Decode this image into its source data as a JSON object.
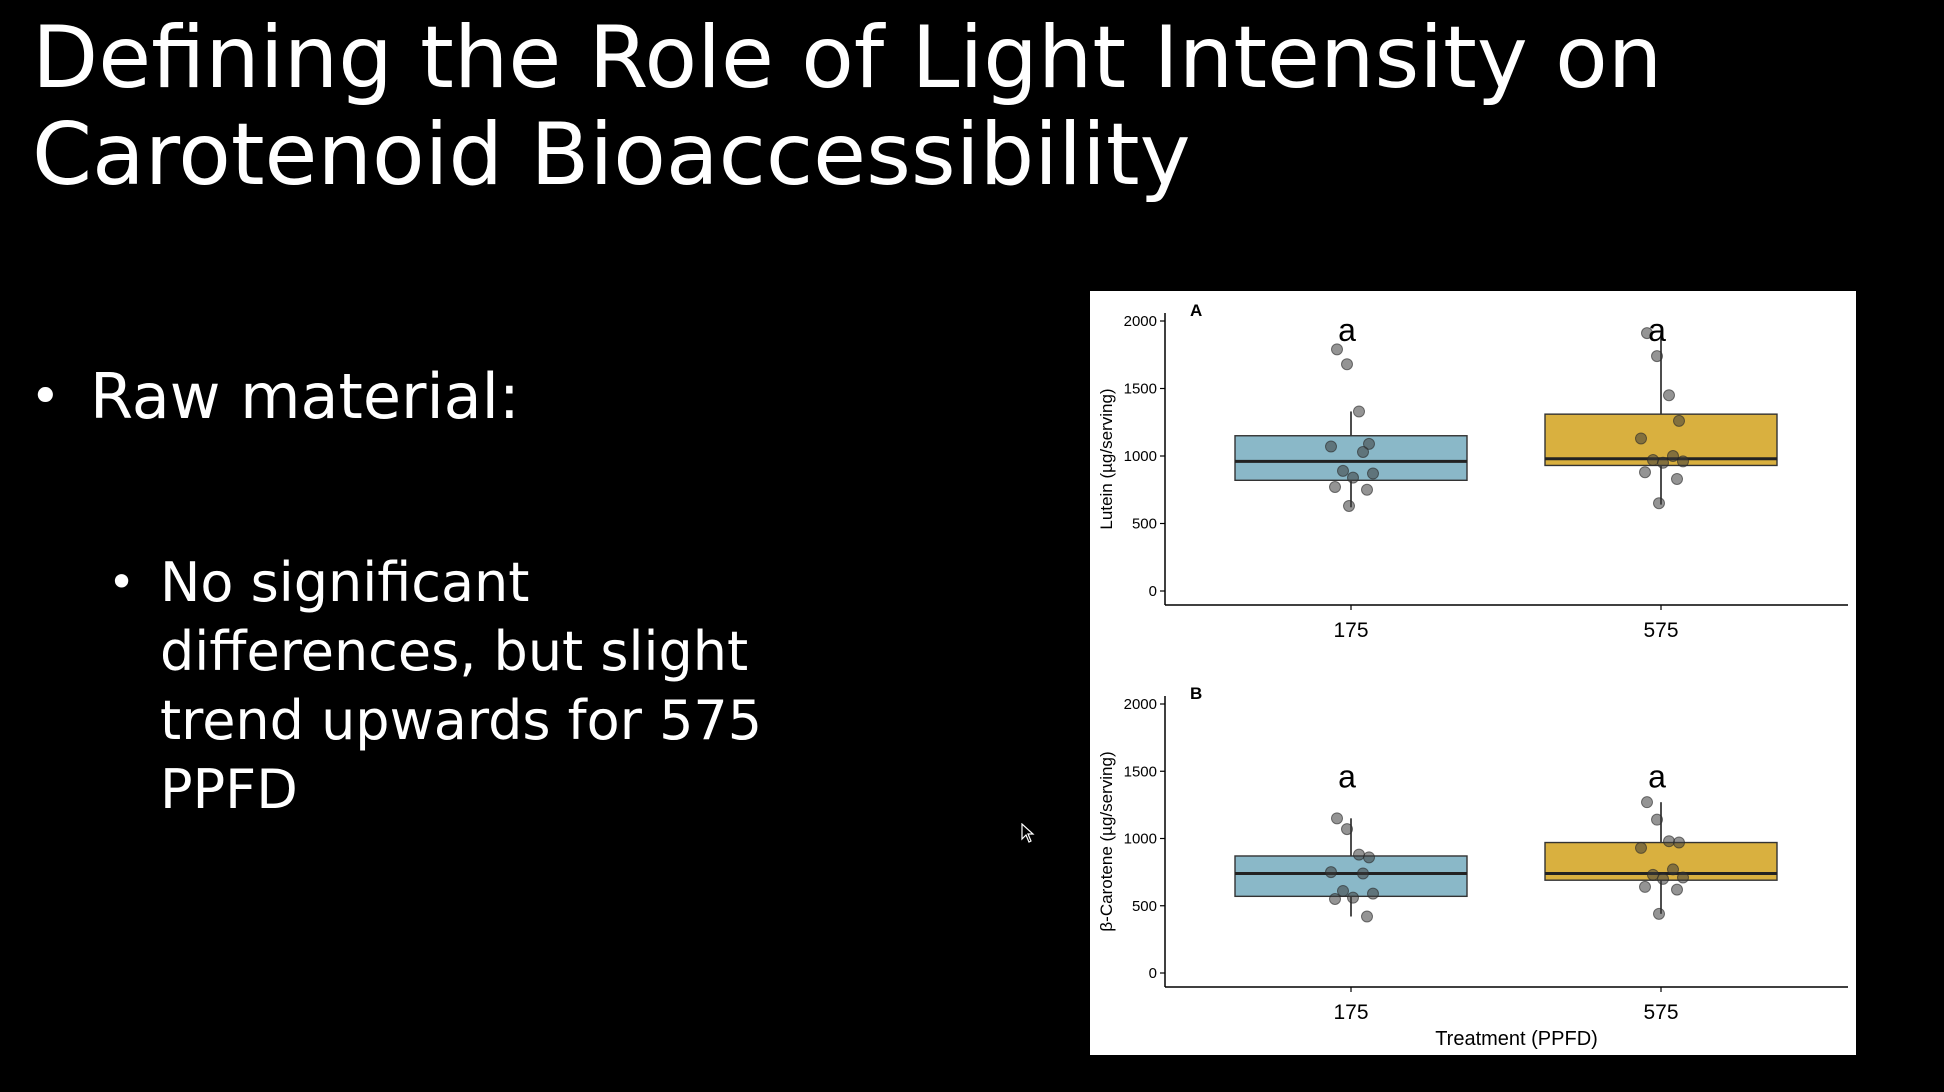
{
  "slide": {
    "title_line1": "Defining the Role of Light Intensity on",
    "title_line2": "Carotenoid Bioaccessibility",
    "bullet1": "Raw material:",
    "bullet2": "No significant differences, but slight trend upwards for 575 PPFD",
    "bullet_glyph": "•"
  },
  "chart_data": [
    {
      "type": "box",
      "panel_label": "A",
      "ylabel": "Lutein (µg/serving)",
      "xlabel": "",
      "categories": [
        "175",
        "575"
      ],
      "ylim": [
        0,
        2000
      ],
      "yticks": [
        0,
        500,
        1000,
        1500,
        2000
      ],
      "grid": false,
      "colors": [
        "#8ab8c8",
        "#d9b03f"
      ],
      "boxes": [
        {
          "category": "175",
          "q1": 820,
          "median": 960,
          "q3": 1150,
          "whisker_low": 620,
          "whisker_high": 1330,
          "letter": "a",
          "points": [
            1790,
            1680,
            1330,
            1090,
            1070,
            1030,
            890,
            870,
            840,
            770,
            750,
            630
          ]
        },
        {
          "category": "575",
          "q1": 930,
          "median": 980,
          "q3": 1310,
          "whisker_low": 640,
          "whisker_high": 1910,
          "letter": "a",
          "points": [
            1910,
            1740,
            1450,
            1260,
            1130,
            1000,
            970,
            960,
            950,
            880,
            830,
            650
          ]
        }
      ]
    },
    {
      "type": "box",
      "panel_label": "B",
      "ylabel": "β-Carotene (µg/serving)",
      "xlabel": "Treatment (PPFD)",
      "categories": [
        "175",
        "575"
      ],
      "ylim": [
        0,
        2000
      ],
      "yticks": [
        0,
        500,
        1000,
        1500,
        2000
      ],
      "grid": false,
      "colors": [
        "#8ab8c8",
        "#d9b03f"
      ],
      "boxes": [
        {
          "category": "175",
          "q1": 570,
          "median": 740,
          "q3": 870,
          "whisker_low": 420,
          "whisker_high": 1150,
          "letter": "a",
          "points": [
            1150,
            1070,
            880,
            860,
            750,
            740,
            610,
            590,
            560,
            550,
            420
          ]
        },
        {
          "category": "575",
          "q1": 690,
          "median": 740,
          "q3": 970,
          "whisker_low": 440,
          "whisker_high": 1270,
          "letter": "a",
          "points": [
            1270,
            1140,
            980,
            970,
            930,
            770,
            730,
            710,
            700,
            640,
            620,
            440
          ]
        }
      ]
    }
  ]
}
